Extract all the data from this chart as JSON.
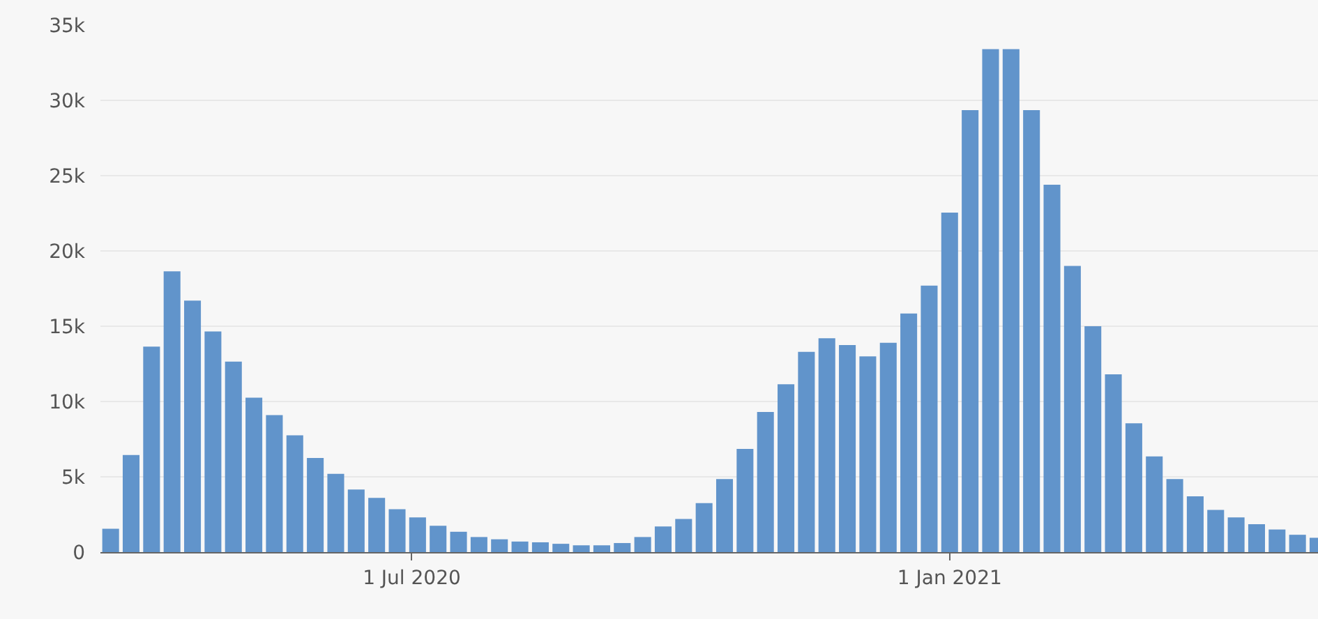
{
  "chart_data": {
    "type": "bar",
    "color": "#6194cb",
    "x": [
      "2020-03-20",
      "2020-03-27",
      "2020-04-03",
      "2020-04-10",
      "2020-04-17",
      "2020-04-24",
      "2020-05-01",
      "2020-05-08",
      "2020-05-15",
      "2020-05-22",
      "2020-05-29",
      "2020-06-05",
      "2020-06-12",
      "2020-06-19",
      "2020-06-26",
      "2020-07-03",
      "2020-07-10",
      "2020-07-17",
      "2020-07-24",
      "2020-07-31",
      "2020-08-07",
      "2020-08-14",
      "2020-08-21",
      "2020-08-28",
      "2020-09-04",
      "2020-09-11",
      "2020-09-18",
      "2020-09-25",
      "2020-10-02",
      "2020-10-09",
      "2020-10-16",
      "2020-10-23",
      "2020-10-30",
      "2020-11-06",
      "2020-11-13",
      "2020-11-20",
      "2020-11-27",
      "2020-12-04",
      "2020-12-11",
      "2020-12-18",
      "2020-12-25",
      "2021-01-01",
      "2021-01-08",
      "2021-01-15",
      "2021-01-22",
      "2021-01-29",
      "2021-02-05",
      "2021-02-12",
      "2021-02-19",
      "2021-02-26",
      "2021-03-05",
      "2021-03-12",
      "2021-03-19",
      "2021-03-26",
      "2021-04-02",
      "2021-04-09",
      "2021-04-16",
      "2021-04-23",
      "2021-04-30",
      "2021-05-07"
    ],
    "values": [
      1550,
      6450,
      13650,
      18650,
      16700,
      14650,
      12650,
      10250,
      9100,
      7750,
      6250,
      5200,
      4150,
      3600,
      2850,
      2300,
      1750,
      1350,
      1000,
      850,
      700,
      650,
      550,
      450,
      450,
      600,
      1000,
      1700,
      2200,
      3250,
      4850,
      6850,
      9300,
      11150,
      13300,
      14200,
      13750,
      13000,
      13900,
      15850,
      17700,
      22550,
      29350,
      33400,
      33400,
      29350,
      24400,
      19000,
      15000,
      11800,
      8550,
      6350,
      4850,
      3700,
      2800,
      2300,
      1850,
      1500,
      1150,
      950
    ],
    "xlim": [
      "2020-03-16T12:00",
      "2021-05-07"
    ],
    "xticks": [
      {
        "value": "2020-07-01",
        "label": "1 Jul 2020"
      },
      {
        "value": "2021-01-01",
        "label": "1 Jan 2021"
      }
    ],
    "ylim": [
      0,
      35000
    ],
    "yticks": [
      0,
      {
        "value": 5000,
        "label": "5k"
      },
      {
        "value": 10000,
        "label": "10k"
      },
      {
        "value": 15000,
        "label": "15k"
      },
      {
        "value": 20000,
        "label": "20k"
      },
      {
        "value": 25000,
        "label": "25k"
      },
      {
        "value": 30000,
        "label": "30k"
      },
      {
        "value": 35000,
        "label": "35k"
      }
    ],
    "grid": "y"
  }
}
